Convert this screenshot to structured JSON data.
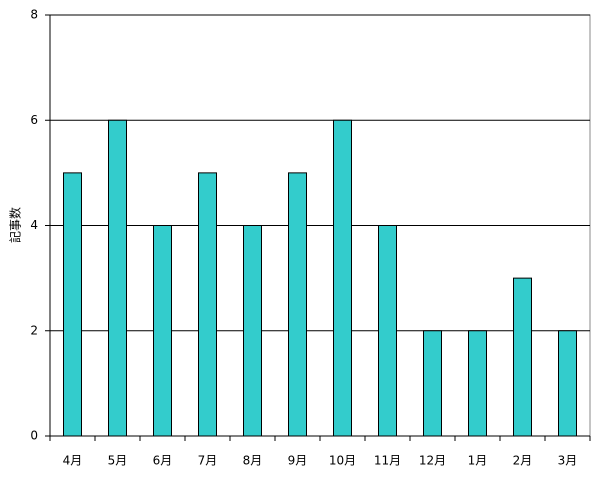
{
  "chart_data": {
    "type": "bar",
    "y_label": "記事数",
    "categories": [
      "4月",
      "5月",
      "6月",
      "7月",
      "8月",
      "9月",
      "10月",
      "11月",
      "12月",
      "1月",
      "2月",
      "3月"
    ],
    "values": [
      5,
      6,
      4,
      5,
      4,
      5,
      6,
      4,
      2,
      2,
      3,
      2
    ],
    "color": "#33cccc",
    "ylim": [
      0,
      8
    ],
    "yticks": [
      0,
      2,
      4,
      6,
      8
    ],
    "grid": true
  }
}
